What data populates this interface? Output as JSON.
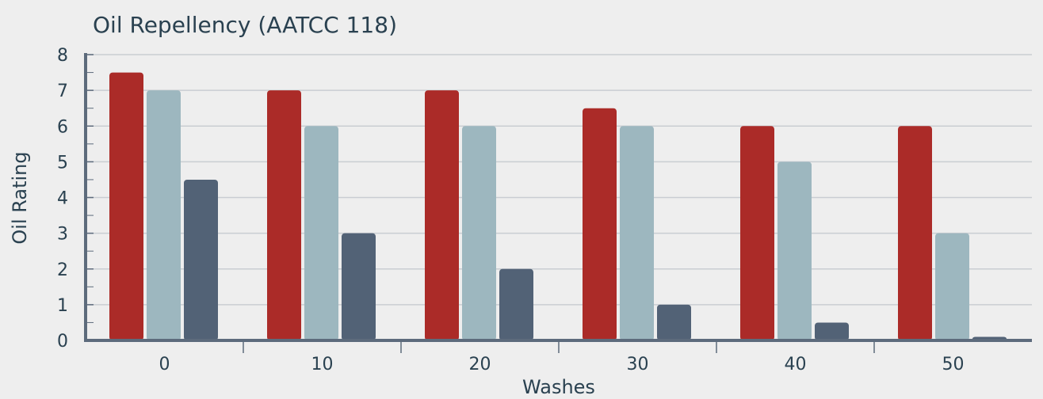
{
  "chart_data": {
    "type": "bar",
    "title": "Oil Repellency (AATCC 118)",
    "xlabel": "Washes",
    "ylabel": "Oil Rating",
    "categories": [
      "0",
      "10",
      "20",
      "30",
      "40",
      "50"
    ],
    "ylim": [
      0,
      8
    ],
    "yticks": [
      "0",
      "1",
      "2",
      "3",
      "4",
      "5",
      "6",
      "7",
      "8"
    ],
    "grid": true,
    "legend": "none",
    "series": [
      {
        "color": "#ab2b28",
        "values": [
          7.5,
          7,
          7,
          6.5,
          6,
          6
        ]
      },
      {
        "color": "#9db7bf",
        "values": [
          7,
          6,
          6,
          6,
          5,
          3
        ]
      },
      {
        "color": "#526276",
        "values": [
          4.5,
          3,
          2,
          1,
          0.5,
          0.1
        ]
      }
    ]
  },
  "colors": {
    "background": "#eeeeee",
    "axis": "#5d6b7c",
    "grid": "#c9cdd2",
    "text": "#2a4150"
  }
}
